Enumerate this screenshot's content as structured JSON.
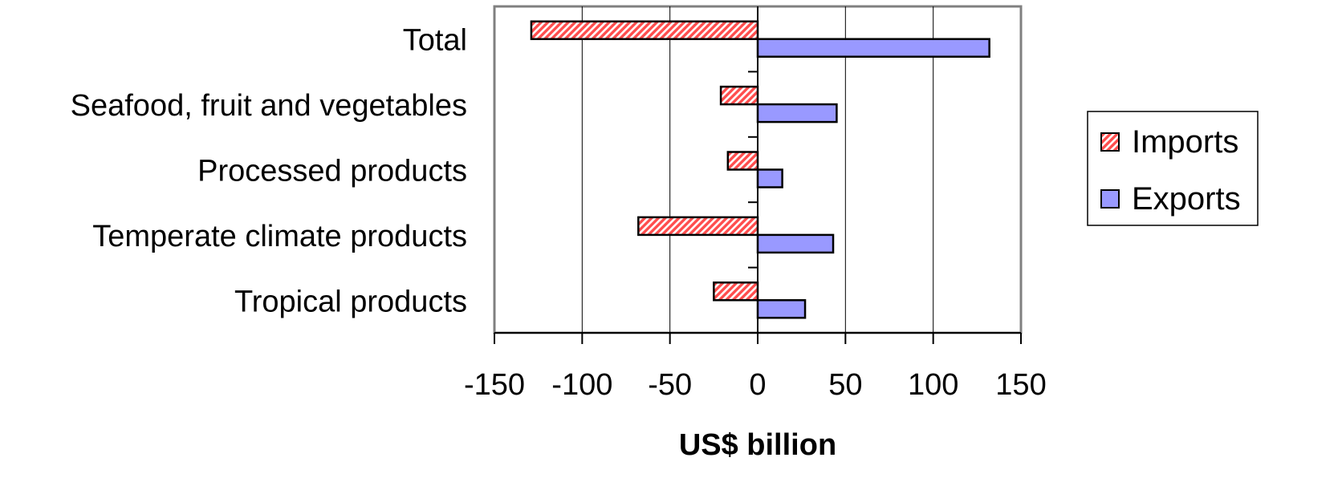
{
  "chart_data": {
    "type": "bar",
    "orientation": "horizontal",
    "categories": [
      "Total",
      "Seafood, fruit and vegetables",
      "Processed products",
      "Temperate climate products",
      "Tropical products"
    ],
    "series": [
      {
        "name": "Imports",
        "values": [
          -129,
          -21,
          -17,
          -68,
          -25
        ],
        "color": "#ff6666",
        "pattern": "diagonal-hatch"
      },
      {
        "name": "Exports",
        "values": [
          132,
          45,
          14,
          43,
          27
        ],
        "color": "#9999ff"
      }
    ],
    "xlabel": "US$ billion",
    "ylabel": "",
    "xlim": [
      -150,
      150
    ],
    "xticks": [
      "-150",
      "-100",
      "-50",
      "0",
      "50",
      "100",
      "150"
    ],
    "grid": "vertical",
    "legend_position": "right"
  }
}
